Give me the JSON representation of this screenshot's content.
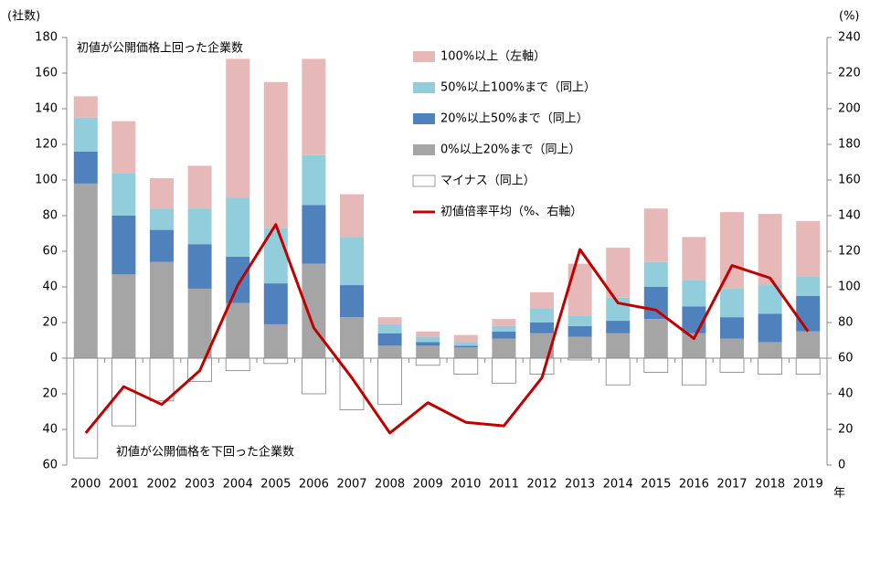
{
  "chart_data": {
    "type": "bar",
    "y_label": "(社数)",
    "y2_label": "(%)",
    "x_label": "年",
    "annotations": [
      "初値が公開価格上回った企業数",
      "初値が公開価格を下回った企業数"
    ],
    "categories": [
      "2000",
      "2001",
      "2002",
      "2003",
      "2004",
      "2005",
      "2006",
      "2007",
      "2008",
      "2009",
      "2010",
      "2011",
      "2012",
      "2013",
      "2014",
      "2015",
      "2016",
      "2017",
      "2018",
      "2019"
    ],
    "series": [
      {
        "name": "100%以上（左軸）",
        "color": "#e6b9b8",
        "values": [
          12,
          29,
          17,
          24,
          78,
          82,
          54,
          24,
          4,
          3,
          4,
          4,
          9,
          29,
          28,
          30,
          24,
          43,
          40,
          31
        ]
      },
      {
        "name": "50%以上100%まで（同上）",
        "color": "#92cddc",
        "values": [
          19,
          24,
          12,
          20,
          33,
          31,
          28,
          27,
          5,
          3,
          2,
          3,
          8,
          6,
          13,
          14,
          15,
          16,
          16,
          11
        ]
      },
      {
        "name": "20%以上50%まで（同上）",
        "color": "#4f81bd",
        "values": [
          18,
          33,
          18,
          25,
          26,
          23,
          33,
          18,
          7,
          2,
          1,
          4,
          6,
          6,
          7,
          18,
          15,
          12,
          16,
          20
        ]
      },
      {
        "name": "0%以上20%まで（同上）",
        "color": "#a5a5a5",
        "values": [
          98,
          47,
          54,
          39,
          31,
          19,
          53,
          23,
          7,
          7,
          6,
          11,
          14,
          12,
          14,
          22,
          14,
          11,
          9,
          15
        ]
      },
      {
        "name": "マイナス（同上）",
        "color": "#ffffff",
        "values": [
          -56,
          -38,
          -24,
          -13,
          -7,
          -3,
          -20,
          -29,
          -26,
          -4,
          -9,
          -14,
          -9,
          -1,
          -15,
          -8,
          -15,
          -8,
          -9,
          -9
        ]
      },
      {
        "name": "初値倍率平均（%、右軸）",
        "color": "#c00000",
        "type": "line",
        "axis": "y2",
        "values": [
          18,
          44,
          34,
          53,
          101,
          135,
          77,
          49,
          18,
          35,
          24,
          22,
          49,
          121,
          91,
          87,
          71,
          112,
          105,
          75
        ]
      }
    ],
    "ylim": [
      -60,
      180
    ],
    "yticks": [
      {
        "value": -60,
        "label": "60"
      },
      {
        "value": -40,
        "label": "40"
      },
      {
        "value": -20,
        "label": "20"
      },
      0,
      20,
      40,
      60,
      80,
      100,
      120,
      140,
      160,
      180
    ],
    "y2lim": [
      0,
      240
    ],
    "y2ticks": [
      0,
      20,
      40,
      60,
      80,
      100,
      120,
      140,
      160,
      180,
      200,
      220,
      240
    ],
    "grid": false
  }
}
